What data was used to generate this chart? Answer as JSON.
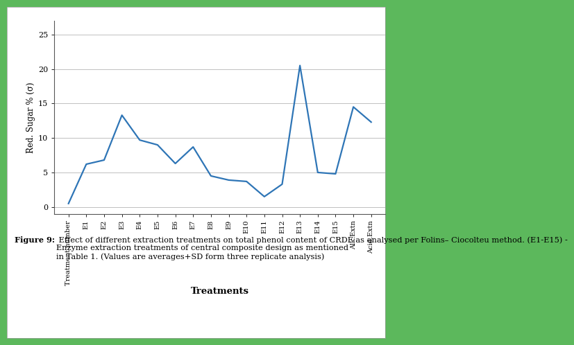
{
  "categories": [
    "Treatment number",
    "E1",
    "E2",
    "E3",
    "E4",
    "E5",
    "E6",
    "E7",
    "E8",
    "E9",
    "E10",
    "E11",
    "E12",
    "E13",
    "E14",
    "E15",
    "Alk.Extn",
    "Acid.Extn"
  ],
  "y_values": [
    0.5,
    6.2,
    6.8,
    13.3,
    9.7,
    9.0,
    6.3,
    8.7,
    4.5,
    3.9,
    3.7,
    1.5,
    3.3,
    20.5,
    5.0,
    4.8,
    14.5,
    12.3
  ],
  "line_color": "#2e75b6",
  "ylabel": "Red. Sugar % (σ)",
  "xlabel": "Treatments",
  "ylim": [
    -1,
    27
  ],
  "yticks": [
    0,
    5,
    10,
    15,
    20,
    25
  ],
  "grid_color": "#c0c0c0",
  "outer_border_color": "#5cb85c",
  "line_width": 1.6,
  "caption_bold": "Figure 9:",
  "caption_rest": " Effect of different extraction treatments on total phenol content of CRDF as analysed per Folins– Ciocolteu method. (E1-E15) -\nEnzyme extraction treatments of central composite design as mentioned\nin Table 1. (Values are averages+SD form three replicate analysis)"
}
